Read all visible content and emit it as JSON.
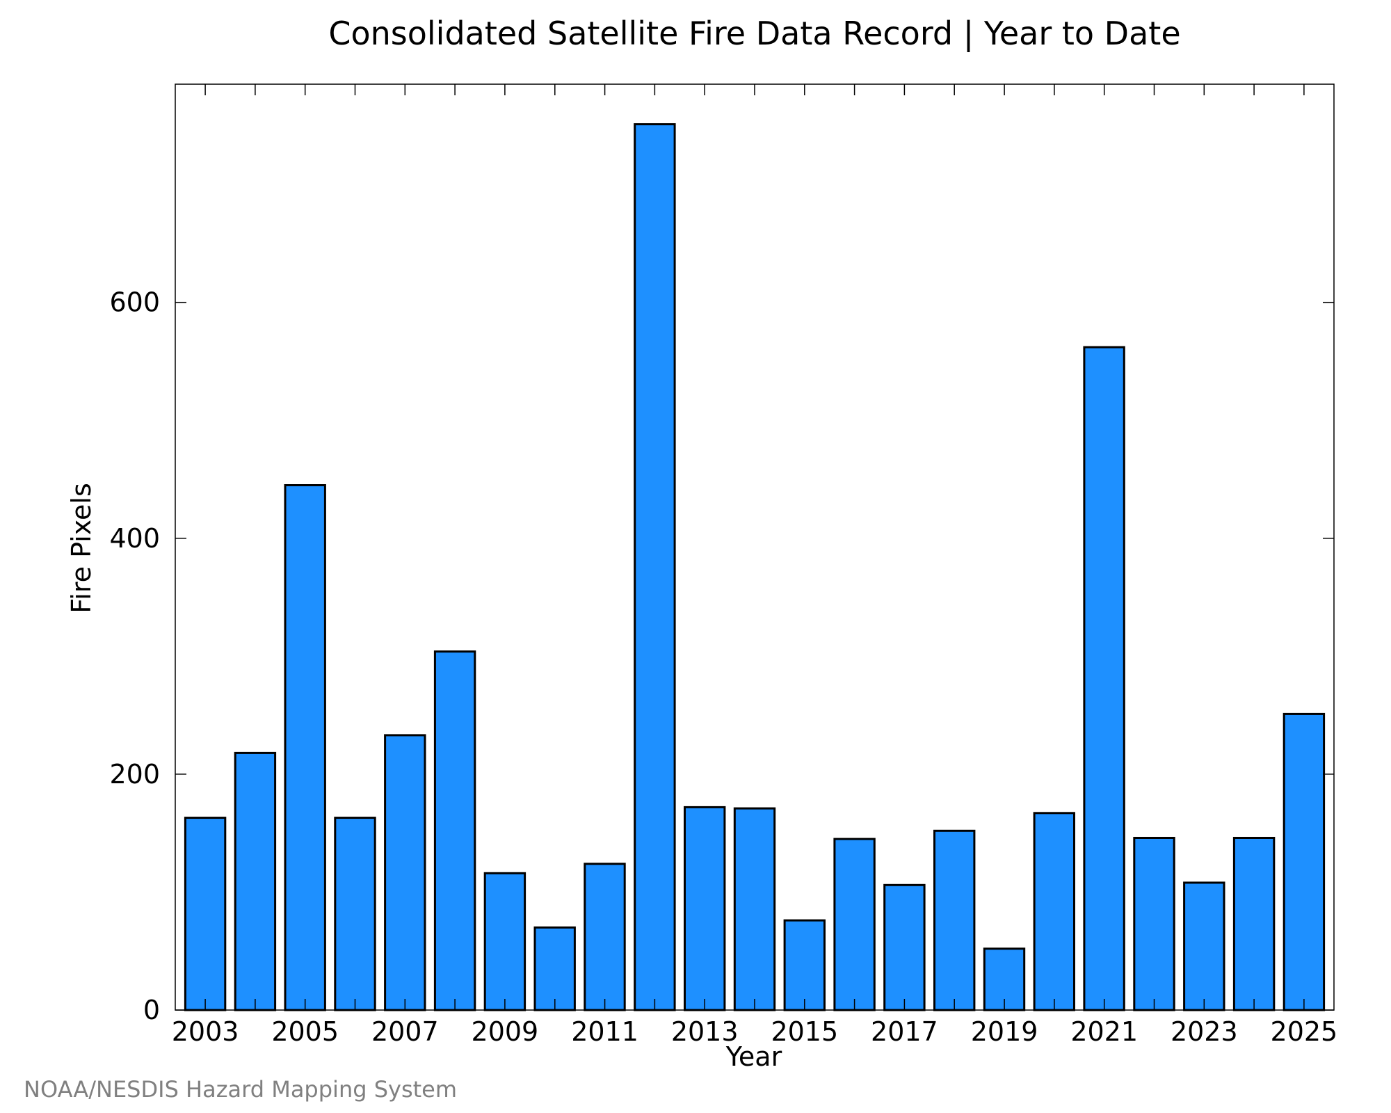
{
  "chart_data": {
    "type": "bar",
    "title": "Consolidated Satellite Fire Data Record | Year to Date",
    "xlabel": "Year",
    "ylabel": "Fire Pixels",
    "categories": [
      "2003",
      "2004",
      "2005",
      "2006",
      "2007",
      "2008",
      "2009",
      "2010",
      "2011",
      "2012",
      "2013",
      "2014",
      "2015",
      "2016",
      "2017",
      "2018",
      "2019",
      "2020",
      "2021",
      "2022",
      "2023",
      "2024",
      "2025"
    ],
    "values": [
      163,
      218,
      445,
      163,
      233,
      304,
      116,
      70,
      124,
      751,
      172,
      171,
      76,
      145,
      106,
      152,
      52,
      167,
      562,
      146,
      108,
      146,
      251
    ],
    "x_tick_labels": [
      "2003",
      "2005",
      "2007",
      "2009",
      "2011",
      "2013",
      "2015",
      "2017",
      "2019",
      "2021",
      "2023",
      "2025"
    ],
    "y_ticks": [
      0,
      200,
      400,
      600
    ],
    "ylim": [
      0,
      785
    ],
    "grid": false,
    "legend": "none",
    "bar_color": "#1E90FF",
    "bar_edge_color": "#000000"
  },
  "credit": "NOAA/NESDIS Hazard Mapping System"
}
